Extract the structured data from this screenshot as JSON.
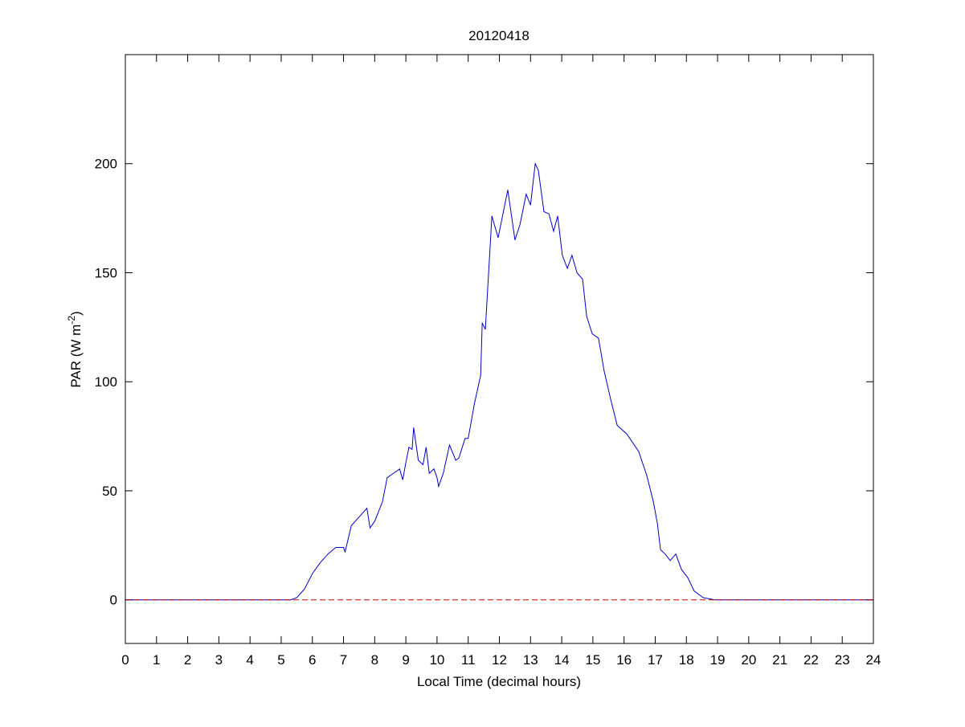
{
  "chart_data": {
    "type": "line",
    "title": "20120418",
    "xlabel": "Local Time (decimal hours)",
    "ylabel": {
      "text": "PAR (W m",
      "superscript": "-2",
      "suffix": ")"
    },
    "x": [
      0,
      5.3,
      5.5,
      5.75,
      6.0,
      6.25,
      6.5,
      6.75,
      7.0,
      7.05,
      7.25,
      7.5,
      7.75,
      7.85,
      8.0,
      8.25,
      8.4,
      8.6,
      8.8,
      8.9,
      9.0,
      9.1,
      9.2,
      9.25,
      9.4,
      9.55,
      9.65,
      9.75,
      9.9,
      10.0,
      10.05,
      10.2,
      10.4,
      10.6,
      10.7,
      10.9,
      11.0,
      11.2,
      11.4,
      11.45,
      11.55,
      11.76,
      11.96,
      12.27,
      12.5,
      12.66,
      12.86,
      13.0,
      13.15,
      13.25,
      13.43,
      13.59,
      13.74,
      13.87,
      14.02,
      14.18,
      14.33,
      14.49,
      14.67,
      14.8,
      14.98,
      15.18,
      15.36,
      15.57,
      15.78,
      16.09,
      16.47,
      16.73,
      16.94,
      17.07,
      17.17,
      17.32,
      17.48,
      17.66,
      17.84,
      18.05,
      18.25,
      18.54,
      18.92,
      24
    ],
    "values": [
      0,
      0,
      1,
      5,
      12,
      17,
      21,
      24,
      24,
      22,
      34,
      38,
      42,
      33,
      36,
      45,
      56,
      58,
      60,
      55,
      63,
      70,
      69,
      79,
      64,
      62,
      70,
      58,
      60,
      56,
      52,
      58,
      71,
      64,
      65,
      74,
      74,
      90,
      103,
      127,
      124,
      176,
      166,
      188,
      165,
      172,
      186,
      181,
      200,
      197,
      178,
      177,
      169,
      176,
      158,
      152,
      158,
      150,
      147,
      130,
      122,
      120,
      105,
      92,
      80,
      76,
      68,
      57,
      45,
      35,
      23,
      21,
      18,
      21,
      14,
      10,
      4,
      1,
      0,
      0
    ],
    "color": "#0000cc",
    "reference_line": {
      "value": 0,
      "color": "#cc0000",
      "style": "dashed"
    },
    "xlim": [
      0,
      24
    ],
    "ylim": [
      -20,
      250
    ],
    "xticks": [
      0,
      1,
      2,
      3,
      4,
      5,
      6,
      7,
      8,
      9,
      10,
      11,
      12,
      13,
      14,
      15,
      16,
      17,
      18,
      19,
      20,
      21,
      22,
      23,
      24
    ],
    "yticks": [
      0,
      50,
      100,
      150,
      200
    ]
  }
}
